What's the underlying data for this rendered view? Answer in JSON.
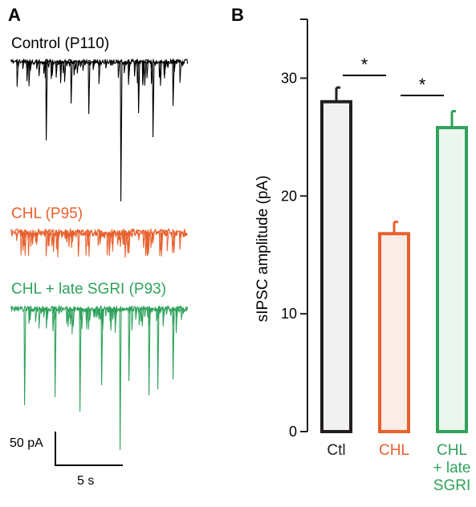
{
  "panels": {
    "a_letter": "A",
    "b_letter": "B"
  },
  "traces": [
    {
      "label": "Control (P110)",
      "color": "#000000"
    },
    {
      "label": "CHL (P95)",
      "color": "#E8602C"
    },
    {
      "label": "CHL + late SGRI (P93)",
      "color": "#2FA25B"
    }
  ],
  "scale_bar": {
    "amplitude_label": "50 pA",
    "time_label": "5 s"
  },
  "chart_data": {
    "type": "bar",
    "title": "",
    "xlabel": "",
    "ylabel": "sIPSC amplitude (pA)",
    "ylim": [
      0,
      35
    ],
    "yticks": [
      0,
      10,
      20,
      30
    ],
    "categories": [
      "Ctl",
      "CHL",
      "CHL + late SGRI"
    ],
    "category_label_lines": [
      [
        "Ctl"
      ],
      [
        "CHL"
      ],
      [
        "CHL",
        "+ late",
        "SGRI"
      ]
    ],
    "values": [
      28.0,
      16.8,
      25.8
    ],
    "errors": [
      1.2,
      1.0,
      1.4
    ],
    "colors": [
      "#231F20",
      "#E8602C",
      "#2FA25B"
    ],
    "fills": [
      "#F1F1F1",
      "#FBEDE6",
      "#EAF6EE"
    ],
    "significance": [
      {
        "between": [
          0,
          1
        ],
        "label": "*"
      },
      {
        "between": [
          1,
          2
        ],
        "label": "*"
      }
    ]
  }
}
